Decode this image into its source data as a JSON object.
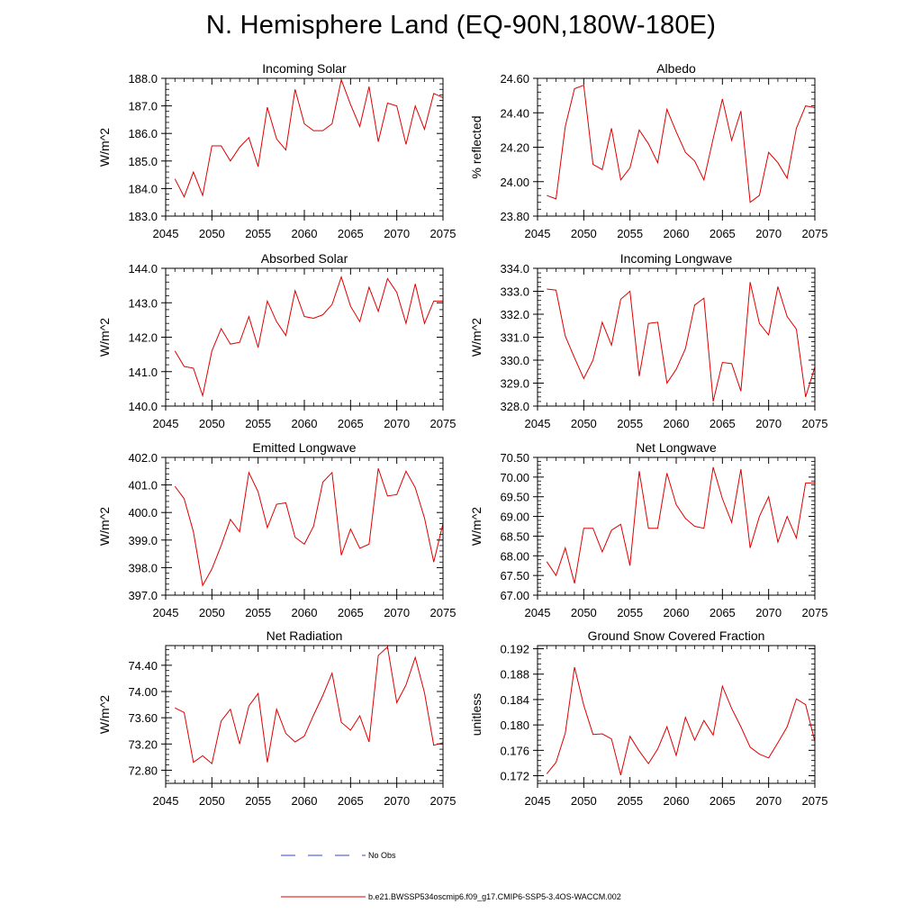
{
  "title": "N. Hemisphere Land (EQ-90N,180W-180E)",
  "colors": {
    "model": "#dd0000",
    "obs": "#3344cc",
    "axis": "#000000"
  },
  "legend": {
    "obs_label": "No Obs",
    "model_label": "b.e21.BWSSP534oscmip6.f09_g17.CMIP6-SSP5-3.4OS-WACCM.002"
  },
  "chart_data": [
    {
      "type": "line",
      "title": "Incoming Solar",
      "ylabel": "W/m^2",
      "xlim": [
        2045,
        2075
      ],
      "ylim": [
        183.0,
        188.0
      ],
      "xticks": [
        2045,
        2050,
        2055,
        2060,
        2065,
        2070,
        2075
      ],
      "yticks": [
        "183.0",
        "184.0",
        "185.0",
        "186.0",
        "187.0",
        "188.0"
      ],
      "x": [
        2046,
        2047,
        2048,
        2049,
        2050,
        2051,
        2052,
        2053,
        2054,
        2055,
        2056,
        2057,
        2058,
        2059,
        2060,
        2061,
        2062,
        2063,
        2064,
        2065,
        2066,
        2067,
        2068,
        2069,
        2070,
        2071,
        2072,
        2073,
        2074,
        2075
      ],
      "series": [
        {
          "name": "b.e21.BWSSP534oscmip6.f09_g17.CMIP6-SSP5-3.4OS-WACCM.002",
          "values": [
            184.35,
            183.7,
            184.6,
            183.75,
            185.55,
            185.55,
            185.0,
            185.5,
            185.85,
            184.8,
            186.95,
            185.8,
            185.4,
            187.6,
            186.35,
            186.1,
            186.1,
            186.35,
            187.95,
            187.05,
            186.25,
            187.7,
            185.7,
            187.1,
            187.0,
            185.6,
            187.0,
            186.15,
            187.45,
            187.3
          ]
        }
      ]
    },
    {
      "type": "line",
      "title": "Albedo",
      "ylabel": "% reflected",
      "xlim": [
        2045,
        2075
      ],
      "ylim": [
        23.8,
        24.6
      ],
      "xticks": [
        2045,
        2050,
        2055,
        2060,
        2065,
        2070,
        2075
      ],
      "yticks": [
        "23.80",
        "24.00",
        "24.20",
        "24.40",
        "24.60"
      ],
      "x": [
        2046,
        2047,
        2048,
        2049,
        2050,
        2051,
        2052,
        2053,
        2054,
        2055,
        2056,
        2057,
        2058,
        2059,
        2060,
        2061,
        2062,
        2063,
        2064,
        2065,
        2066,
        2067,
        2068,
        2069,
        2070,
        2071,
        2072,
        2073,
        2074,
        2075
      ],
      "series": [
        {
          "name": "b.e21.BWSSP534oscmip6.f09_g17.CMIP6-SSP5-3.4OS-WACCM.002",
          "values": [
            23.92,
            23.9,
            24.32,
            24.54,
            24.56,
            24.1,
            24.07,
            24.31,
            24.01,
            24.08,
            24.3,
            24.22,
            24.11,
            24.42,
            24.29,
            24.17,
            24.12,
            24.01,
            24.25,
            24.48,
            24.24,
            24.41,
            23.88,
            23.92,
            24.17,
            24.11,
            24.02,
            24.31,
            24.44,
            24.43
          ]
        }
      ]
    },
    {
      "type": "line",
      "title": "Absorbed Solar",
      "ylabel": "W/m^2",
      "xlim": [
        2045,
        2075
      ],
      "ylim": [
        140.0,
        144.0
      ],
      "xticks": [
        2045,
        2050,
        2055,
        2060,
        2065,
        2070,
        2075
      ],
      "yticks": [
        "140.0",
        "141.0",
        "142.0",
        "143.0",
        "144.0"
      ],
      "x": [
        2046,
        2047,
        2048,
        2049,
        2050,
        2051,
        2052,
        2053,
        2054,
        2055,
        2056,
        2057,
        2058,
        2059,
        2060,
        2061,
        2062,
        2063,
        2064,
        2065,
        2066,
        2067,
        2068,
        2069,
        2070,
        2071,
        2072,
        2073,
        2074,
        2075
      ],
      "series": [
        {
          "name": "b.e21.BWSSP534oscmip6.f09_g17.CMIP6-SSP5-3.4OS-WACCM.002",
          "values": [
            141.6,
            141.15,
            141.1,
            140.3,
            141.6,
            142.25,
            141.8,
            141.85,
            142.6,
            141.7,
            143.05,
            142.45,
            142.05,
            143.35,
            142.6,
            142.55,
            142.65,
            142.95,
            143.75,
            142.9,
            142.45,
            143.45,
            142.75,
            143.7,
            143.3,
            142.4,
            143.55,
            142.4,
            143.05,
            143.05
          ]
        }
      ]
    },
    {
      "type": "line",
      "title": "Incoming Longwave",
      "ylabel": "W/m^2",
      "xlim": [
        2045,
        2075
      ],
      "ylim": [
        328.0,
        334.0
      ],
      "xticks": [
        2045,
        2050,
        2055,
        2060,
        2065,
        2070,
        2075
      ],
      "yticks": [
        "328.0",
        "329.0",
        "330.0",
        "331.0",
        "332.0",
        "333.0",
        "334.0"
      ],
      "x": [
        2046,
        2047,
        2048,
        2049,
        2050,
        2051,
        2052,
        2053,
        2054,
        2055,
        2056,
        2057,
        2058,
        2059,
        2060,
        2061,
        2062,
        2063,
        2064,
        2065,
        2066,
        2067,
        2068,
        2069,
        2070,
        2071,
        2072,
        2073,
        2074,
        2075
      ],
      "series": [
        {
          "name": "b.e21.BWSSP534oscmip6.f09_g17.CMIP6-SSP5-3.4OS-WACCM.002",
          "values": [
            333.1,
            333.05,
            331.05,
            330.1,
            329.2,
            330.0,
            331.65,
            330.65,
            332.65,
            333.0,
            329.3,
            331.6,
            331.65,
            329.0,
            329.6,
            330.5,
            332.4,
            332.7,
            328.2,
            329.9,
            329.85,
            328.65,
            333.4,
            331.6,
            331.1,
            333.2,
            331.9,
            331.35,
            328.4,
            329.7
          ]
        }
      ]
    },
    {
      "type": "line",
      "title": "Emitted Longwave",
      "ylabel": "W/m^2",
      "xlim": [
        2045,
        2075
      ],
      "ylim": [
        397.0,
        402.0
      ],
      "xticks": [
        2045,
        2050,
        2055,
        2060,
        2065,
        2070,
        2075
      ],
      "yticks": [
        "397.0",
        "398.0",
        "399.0",
        "400.0",
        "401.0",
        "402.0"
      ],
      "x": [
        2046,
        2047,
        2048,
        2049,
        2050,
        2051,
        2052,
        2053,
        2054,
        2055,
        2056,
        2057,
        2058,
        2059,
        2060,
        2061,
        2062,
        2063,
        2064,
        2065,
        2066,
        2067,
        2068,
        2069,
        2070,
        2071,
        2072,
        2073,
        2074,
        2075
      ],
      "series": [
        {
          "name": "b.e21.BWSSP534oscmip6.f09_g17.CMIP6-SSP5-3.4OS-WACCM.002",
          "values": [
            400.95,
            400.5,
            399.3,
            397.35,
            397.95,
            398.8,
            399.75,
            399.3,
            401.45,
            400.75,
            399.45,
            400.3,
            400.35,
            399.1,
            398.85,
            399.5,
            401.1,
            401.45,
            398.45,
            399.4,
            398.7,
            398.85,
            401.6,
            400.6,
            400.65,
            401.5,
            400.9,
            399.8,
            398.2,
            399.6
          ]
        }
      ]
    },
    {
      "type": "line",
      "title": "Net Longwave",
      "ylabel": "W/m^2",
      "xlim": [
        2045,
        2075
      ],
      "ylim": [
        67.0,
        70.5
      ],
      "xticks": [
        2045,
        2050,
        2055,
        2060,
        2065,
        2070,
        2075
      ],
      "yticks": [
        "67.00",
        "67.50",
        "68.00",
        "68.50",
        "69.00",
        "69.50",
        "70.00",
        "70.50"
      ],
      "x": [
        2046,
        2047,
        2048,
        2049,
        2050,
        2051,
        2052,
        2053,
        2054,
        2055,
        2056,
        2057,
        2058,
        2059,
        2060,
        2061,
        2062,
        2063,
        2064,
        2065,
        2066,
        2067,
        2068,
        2069,
        2070,
        2071,
        2072,
        2073,
        2074,
        2075
      ],
      "series": [
        {
          "name": "b.e21.BWSSP534oscmip6.f09_g17.CMIP6-SSP5-3.4OS-WACCM.002",
          "values": [
            67.85,
            67.5,
            68.2,
            67.3,
            68.7,
            68.7,
            68.1,
            68.65,
            68.8,
            67.75,
            70.15,
            68.7,
            68.7,
            70.1,
            69.3,
            68.95,
            68.75,
            68.7,
            70.25,
            69.45,
            68.85,
            70.2,
            68.2,
            69.0,
            69.5,
            68.35,
            69.0,
            68.45,
            69.85,
            69.85
          ]
        }
      ]
    },
    {
      "type": "line",
      "title": "Net Radiation",
      "ylabel": "W/m^2",
      "xlim": [
        2045,
        2075
      ],
      "ylim": [
        72.6,
        74.7
      ],
      "xticks": [
        2045,
        2050,
        2055,
        2060,
        2065,
        2070,
        2075
      ],
      "yticks": [
        "72.80",
        "73.20",
        "73.60",
        "74.00",
        "74.40"
      ],
      "x": [
        2046,
        2047,
        2048,
        2049,
        2050,
        2051,
        2052,
        2053,
        2054,
        2055,
        2056,
        2057,
        2058,
        2059,
        2060,
        2061,
        2062,
        2063,
        2064,
        2065,
        2066,
        2067,
        2068,
        2069,
        2070,
        2071,
        2072,
        2073,
        2074,
        2075
      ],
      "series": [
        {
          "name": "b.e21.BWSSP534oscmip6.f09_g17.CMIP6-SSP5-3.4OS-WACCM.002",
          "values": [
            73.75,
            73.68,
            72.92,
            73.02,
            72.9,
            73.55,
            73.73,
            73.2,
            73.78,
            73.97,
            72.92,
            73.73,
            73.36,
            73.23,
            73.32,
            73.64,
            73.94,
            74.28,
            73.53,
            73.41,
            73.63,
            73.23,
            74.55,
            74.68,
            73.83,
            74.1,
            74.52,
            73.98,
            73.18,
            73.22
          ]
        }
      ]
    },
    {
      "type": "line",
      "title": "Ground Snow Covered Fraction",
      "ylabel": "unitless",
      "xlim": [
        2045,
        2075
      ],
      "ylim": [
        0.1708,
        0.1925
      ],
      "xticks": [
        2045,
        2050,
        2055,
        2060,
        2065,
        2070,
        2075
      ],
      "yticks": [
        "0.172",
        "0.176",
        "0.180",
        "0.184",
        "0.188",
        "0.192"
      ],
      "x": [
        2046,
        2047,
        2048,
        2049,
        2050,
        2051,
        2052,
        2053,
        2054,
        2055,
        2056,
        2057,
        2058,
        2059,
        2060,
        2061,
        2062,
        2063,
        2064,
        2065,
        2066,
        2067,
        2068,
        2069,
        2070,
        2071,
        2072,
        2073,
        2074,
        2075
      ],
      "series": [
        {
          "name": "b.e21.BWSSP534oscmip6.f09_g17.CMIP6-SSP5-3.4OS-WACCM.002",
          "values": [
            0.1723,
            0.1741,
            0.1787,
            0.1891,
            0.1831,
            0.1785,
            0.1786,
            0.1778,
            0.1721,
            0.1782,
            0.1759,
            0.1739,
            0.1762,
            0.1797,
            0.1752,
            0.1812,
            0.1776,
            0.1807,
            0.1784,
            0.1861,
            0.1826,
            0.1797,
            0.1765,
            0.1754,
            0.1748,
            0.1772,
            0.1797,
            0.1841,
            0.1832,
            0.1774
          ]
        }
      ]
    }
  ]
}
